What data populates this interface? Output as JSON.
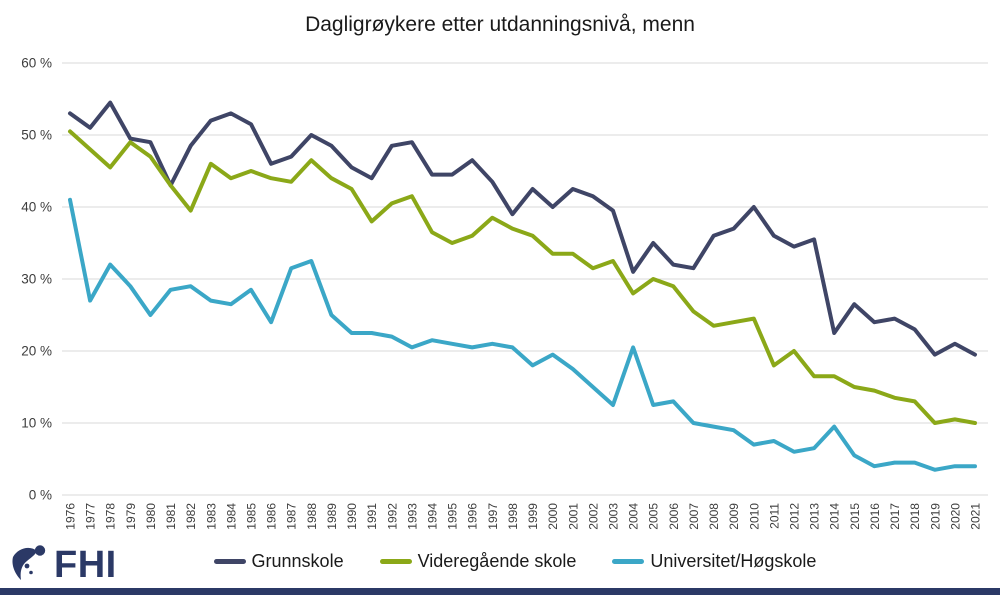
{
  "page": {
    "background": "#ffffff",
    "footer_bar_color": "#2B3966"
  },
  "logo": {
    "text": "FHI",
    "color": "#2B3966"
  },
  "chart_data": {
    "type": "line",
    "title": "Dagligrøykere etter utdanningsnivå, menn",
    "xlabel": "",
    "ylabel": "",
    "ylim": [
      0,
      60
    ],
    "ytick_step": 10,
    "ytick_suffix": " %",
    "grid": "horizontal",
    "gridline_color": "#D9D9D9",
    "axis_label_color": "#3d3d3d",
    "legend_position": "bottom",
    "x": [
      1976,
      1977,
      1978,
      1979,
      1980,
      1981,
      1982,
      1983,
      1984,
      1985,
      1986,
      1987,
      1988,
      1989,
      1990,
      1991,
      1992,
      1993,
      1994,
      1995,
      1996,
      1997,
      1998,
      1999,
      2000,
      2001,
      2002,
      2003,
      2004,
      2005,
      2006,
      2007,
      2008,
      2009,
      2010,
      2011,
      2012,
      2013,
      2014,
      2015,
      2016,
      2017,
      2018,
      2019,
      2020,
      2021
    ],
    "series": [
      {
        "name": "Grunnskole",
        "color": "#3F4566",
        "values": [
          53,
          51,
          54.5,
          49.5,
          49,
          43,
          48.5,
          52,
          53,
          51.5,
          46,
          47,
          50,
          48.5,
          45.5,
          44,
          48.5,
          49,
          44.5,
          44.5,
          46.5,
          43.5,
          39,
          42.5,
          40,
          42.5,
          41.5,
          39.5,
          31,
          35,
          32,
          31.5,
          36,
          37,
          40,
          36,
          34.5,
          35.5,
          22.5,
          26.5,
          24,
          24.5,
          23,
          19.5,
          21,
          19.5
        ]
      },
      {
        "name": "Videregående skole",
        "color": "#8BA818",
        "values": [
          50.5,
          48,
          45.5,
          49,
          47,
          43,
          39.5,
          46,
          44,
          45,
          44,
          43.5,
          46.5,
          44,
          42.5,
          38,
          40.5,
          41.5,
          36.5,
          35,
          36,
          38.5,
          37,
          36,
          33.5,
          33.5,
          31.5,
          32.5,
          28,
          30,
          29,
          25.5,
          23.5,
          24,
          24.5,
          18,
          20,
          16.5,
          16.5,
          15,
          14.5,
          13.5,
          13,
          10,
          10.5,
          10
        ]
      },
      {
        "name": "Universitet/Høgskole",
        "color": "#3BA7C7",
        "values": [
          41,
          27,
          32,
          29,
          25,
          28.5,
          29,
          27,
          26.5,
          28.5,
          24,
          31.5,
          32.5,
          25,
          22.5,
          22.5,
          22,
          20.5,
          21.5,
          21,
          20.5,
          21,
          20.5,
          18,
          19.5,
          17.5,
          15,
          12.5,
          20.5,
          12.5,
          13,
          10,
          9.5,
          9,
          7,
          7.5,
          6,
          6.5,
          9.5,
          5.5,
          4,
          4.5,
          4.5,
          3.5,
          4,
          4
        ]
      }
    ]
  }
}
